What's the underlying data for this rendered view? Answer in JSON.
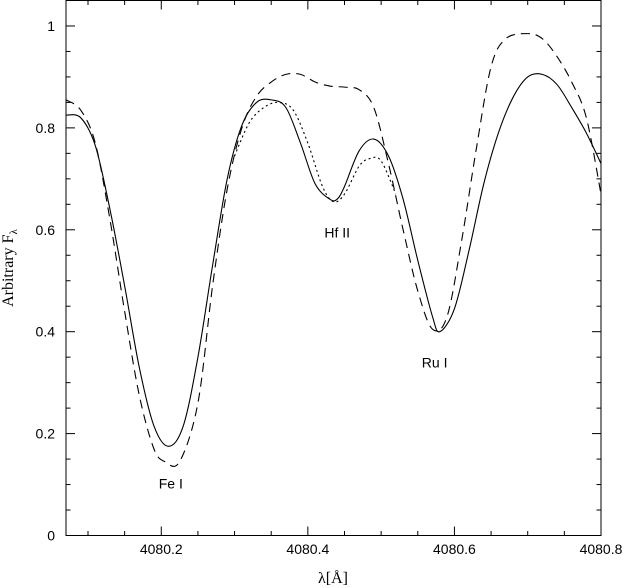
{
  "chart_data": {
    "type": "line",
    "title": "",
    "xlabel": "λ[Å]",
    "ylabel": "Arbitrary F",
    "ylabel_subscript": "λ",
    "xlim": [
      4080.07,
      4080.8
    ],
    "ylim": [
      0,
      1.05
    ],
    "x_ticks": [
      {
        "value": 4080.2,
        "label": "4080.2"
      },
      {
        "value": 4080.4,
        "label": "4080.4"
      },
      {
        "value": 4080.6,
        "label": "4080.6"
      },
      {
        "value": 4080.8,
        "label": "4080.8"
      }
    ],
    "y_ticks": [
      {
        "value": 0,
        "label": "0"
      },
      {
        "value": 0.2,
        "label": "0.2"
      },
      {
        "value": 0.4,
        "label": "0.4"
      },
      {
        "value": 0.6,
        "label": "0.6"
      },
      {
        "value": 0.8,
        "label": "0.8"
      },
      {
        "value": 1,
        "label": "1"
      }
    ],
    "x_minor_step": 0.05,
    "y_minor_step": 0.05,
    "grid": false,
    "series": [
      {
        "style": "solid",
        "x": [
          4080.07,
          4080.09,
          4080.11,
          4080.13,
          4080.15,
          4080.17,
          4080.19,
          4080.21,
          4080.23,
          4080.25,
          4080.27,
          4080.29,
          4080.31,
          4080.33,
          4080.35,
          4080.37,
          4080.39,
          4080.41,
          4080.43,
          4080.44,
          4080.45,
          4080.47,
          4080.49,
          4080.51,
          4080.53,
          4080.55,
          4080.57,
          4080.58,
          4080.6,
          4080.62,
          4080.64,
          4080.66,
          4080.68,
          4080.7,
          4080.72,
          4080.74,
          4080.76,
          4080.78,
          4080.8
        ],
        "y": [
          0.825,
          0.82,
          0.765,
          0.64,
          0.49,
          0.33,
          0.215,
          0.175,
          0.215,
          0.35,
          0.53,
          0.7,
          0.805,
          0.85,
          0.855,
          0.84,
          0.77,
          0.69,
          0.66,
          0.66,
          0.685,
          0.755,
          0.778,
          0.745,
          0.66,
          0.54,
          0.43,
          0.4,
          0.445,
          0.56,
          0.69,
          0.79,
          0.86,
          0.9,
          0.905,
          0.885,
          0.84,
          0.79,
          0.73
        ]
      },
      {
        "style": "dashed",
        "x": [
          4080.07,
          4080.09,
          4080.11,
          4080.13,
          4080.15,
          4080.17,
          4080.19,
          4080.205,
          4080.225,
          4080.25,
          4080.27,
          4080.29,
          4080.31,
          4080.33,
          4080.35,
          4080.37,
          4080.39,
          4080.41,
          4080.43,
          4080.45,
          4080.47,
          4080.49,
          4080.51,
          4080.53,
          4080.55,
          4080.57,
          4080.59,
          4080.61,
          4080.63,
          4080.65,
          4080.67,
          4080.7,
          4080.72,
          4080.74,
          4080.76,
          4080.78,
          4080.8
        ],
        "y": [
          0.855,
          0.835,
          0.77,
          0.62,
          0.44,
          0.275,
          0.17,
          0.145,
          0.145,
          0.26,
          0.49,
          0.68,
          0.8,
          0.862,
          0.89,
          0.905,
          0.905,
          0.89,
          0.882,
          0.88,
          0.875,
          0.84,
          0.73,
          0.6,
          0.48,
          0.405,
          0.43,
          0.58,
          0.76,
          0.92,
          0.975,
          0.985,
          0.975,
          0.94,
          0.89,
          0.82,
          0.67
        ]
      },
      {
        "style": "dotted",
        "x": [
          4080.3,
          4080.32,
          4080.34,
          4080.36,
          4080.38,
          4080.4,
          4080.42,
          4080.435,
          4080.45,
          4080.47,
          4080.485,
          4080.5,
          4080.52
        ],
        "y": [
          0.745,
          0.81,
          0.84,
          0.85,
          0.835,
          0.77,
          0.685,
          0.655,
          0.67,
          0.725,
          0.74,
          0.735,
          0.67
        ]
      }
    ],
    "annotations": [
      {
        "text": "Fe I",
        "x": 4080.213,
        "y": 0.102
      },
      {
        "text": "Hf II",
        "x": 4080.44,
        "y": 0.595
      },
      {
        "text": "Ru I",
        "x": 4080.573,
        "y": 0.34
      }
    ]
  }
}
